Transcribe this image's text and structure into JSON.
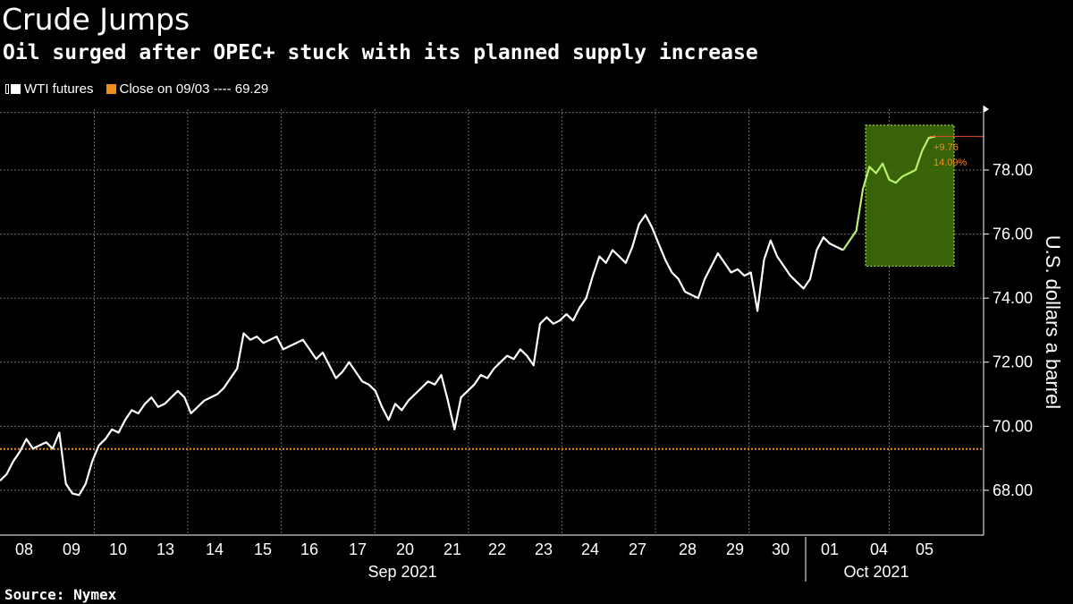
{
  "title": "Crude Jumps",
  "subtitle": "Oil surged after OPEC+ stuck with its planned supply increase",
  "source": "Source: Nymex",
  "legend": {
    "series_label": "WTI futures",
    "close_label": "Close on 09/03 ---- 69.29"
  },
  "colors": {
    "background": "#000000",
    "series": "#ffffff",
    "reference": "#f08c1e",
    "highlight_fill": "#3f6e0a",
    "highlight_line": "#b9f06e",
    "grid": "#6a6a6a"
  },
  "chart_data": {
    "type": "line",
    "ylabel": "U.S. dollars a barrel",
    "ylim": [
      66.6,
      79.9
    ],
    "yticks": [
      68,
      70,
      72,
      74,
      76,
      78
    ],
    "ytick_labels": [
      "68.00",
      "70.00",
      "72.00",
      "74.00",
      "76.00",
      "78.00"
    ],
    "x_day_labels": [
      "08",
      "09",
      "10",
      "13",
      "14",
      "15",
      "16",
      "17",
      "20",
      "21",
      "22",
      "23",
      "24",
      "27",
      "28",
      "29",
      "30",
      "01",
      "04",
      "05"
    ],
    "month_labels": [
      "Sep 2021",
      "Oct 2021"
    ],
    "reference_line": {
      "label": "Close on 09/03",
      "value": 69.29
    },
    "annotation": {
      "change": "+9.76",
      "percent": "14.09%"
    },
    "highlight_range": {
      "from_day": "04",
      "to_day": "05",
      "ymin": 75.0,
      "ymax": 79.4
    },
    "series": [
      {
        "name": "WTI futures",
        "values": [
          68.3,
          68.5,
          68.9,
          69.2,
          69.6,
          69.3,
          69.4,
          69.5,
          69.3,
          69.8,
          68.2,
          67.9,
          67.85,
          68.2,
          68.9,
          69.4,
          69.6,
          69.9,
          69.8,
          70.2,
          70.5,
          70.4,
          70.7,
          70.9,
          70.6,
          70.7,
          70.9,
          71.1,
          70.9,
          70.4,
          70.6,
          70.8,
          70.9,
          71.0,
          71.2,
          71.5,
          71.8,
          72.9,
          72.7,
          72.8,
          72.6,
          72.7,
          72.8,
          72.4,
          72.5,
          72.6,
          72.7,
          72.4,
          72.1,
          72.3,
          71.9,
          71.5,
          71.7,
          72.0,
          71.7,
          71.4,
          71.3,
          71.1,
          70.6,
          70.2,
          70.7,
          70.5,
          70.8,
          71.0,
          71.2,
          71.4,
          71.3,
          71.6,
          70.8,
          69.9,
          70.9,
          71.1,
          71.3,
          71.6,
          71.5,
          71.8,
          72.0,
          72.2,
          72.1,
          72.4,
          72.2,
          71.9,
          73.2,
          73.4,
          73.2,
          73.3,
          73.5,
          73.3,
          73.7,
          74.0,
          74.7,
          75.3,
          75.1,
          75.5,
          75.3,
          75.1,
          75.6,
          76.3,
          76.6,
          76.2,
          75.7,
          75.2,
          74.8,
          74.6,
          74.2,
          74.1,
          74.0,
          74.6,
          75.0,
          75.4,
          75.1,
          74.8,
          74.9,
          74.7,
          74.8,
          73.6,
          75.2,
          75.8,
          75.3,
          75.0,
          74.7,
          74.5,
          74.3,
          74.6,
          75.5,
          75.9,
          75.7,
          75.6,
          75.5,
          75.8,
          76.1,
          77.4,
          78.1,
          77.9,
          78.2,
          77.7,
          77.6,
          77.8,
          77.9,
          78.0,
          78.6,
          79.0,
          79.05
        ]
      }
    ]
  }
}
